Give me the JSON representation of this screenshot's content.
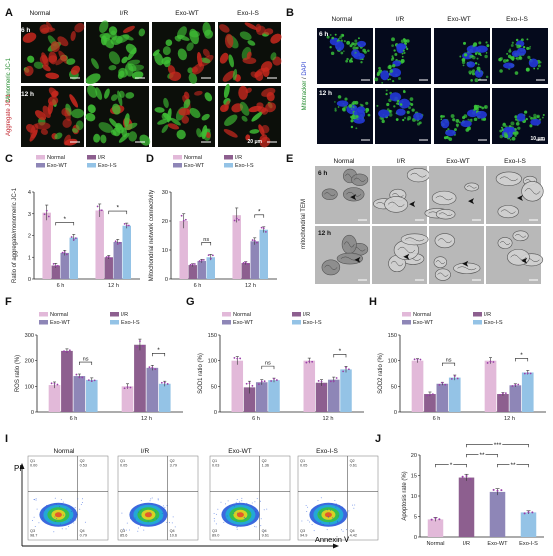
{
  "groups": [
    "Normal",
    "I/R",
    "Exo-WT",
    "Exo-I-S"
  ],
  "times": [
    "6 h",
    "12 h"
  ],
  "colors": {
    "Normal": "#e2b9d9",
    "I/R": "#8d5f8f",
    "Exo-WT": "#8e86b7",
    "Exo-I-S": "#94c3e6",
    "point": "#9a3fa8",
    "jc1_bg": "#0c0f0a",
    "mito_bg": "#050a1c",
    "tem_bg": "#b8b8b8",
    "flow_bg": "#ffffff"
  },
  "panel_letters": {
    "A": "A",
    "B": "B",
    "C": "C",
    "D": "D",
    "E": "E",
    "F": "F",
    "G": "G",
    "H": "H",
    "I": "I",
    "J": "J"
  },
  "panelA": {
    "side_label_1": "Monomeric JC-1",
    "side_label_2": "Aggregate JC-1",
    "time_6": "6 h",
    "time_12": "12 h",
    "scale": "20 μm"
  },
  "panelB": {
    "side_label_1": "Mitotracker",
    "side_label_2": "DAPI",
    "time_6": "6 h",
    "time_12": "12 h",
    "scale": "10 μm"
  },
  "panelE": {
    "side_label": "mitochondrial TEM",
    "time_6": "6 h",
    "time_12": "12 h"
  },
  "panelI": {
    "y_axis": "PI",
    "x_axis": "Annexin Ⅴ",
    "quadrants": [
      {
        "q1": "Q1",
        "q2": "Q2",
        "q3": "Q3",
        "q4": "Q4",
        "v1": "0.00",
        "v2": "0.53",
        "v3": "98.7",
        "v4": "0.79"
      },
      {
        "q1": "Q1",
        "q2": "Q2",
        "q3": "Q3",
        "q4": "Q4",
        "v1": "0.05",
        "v2": "3.79",
        "v3": "85.6",
        "v4": "10.6"
      },
      {
        "q1": "Q1",
        "q2": "Q2",
        "q3": "Q3",
        "q4": "Q4",
        "v1": "0.03",
        "v2": "1.36",
        "v3": "89.0",
        "v4": "9.61"
      },
      {
        "q1": "Q1",
        "q2": "Q2",
        "q3": "Q3",
        "q4": "Q4",
        "v1": "0.05",
        "v2": "0.61",
        "v3": "94.9",
        "v4": "4.42"
      }
    ]
  },
  "chart_data": [
    {
      "id": "C",
      "type": "bar",
      "ylabel": "Ratio of aggregate/monomeric JC-1",
      "categories": [
        "6 h",
        "12 h"
      ],
      "ylim": [
        0,
        4
      ],
      "yticks": [
        0,
        1,
        2,
        3,
        4
      ],
      "series": [
        {
          "name": "Normal",
          "values": [
            3.05,
            3.15
          ],
          "err": [
            0.35,
            0.3
          ]
        },
        {
          "name": "I/R",
          "values": [
            0.62,
            1.0
          ],
          "err": [
            0.1,
            0.08
          ]
        },
        {
          "name": "Exo-WT",
          "values": [
            1.2,
            1.7
          ],
          "err": [
            0.12,
            0.12
          ]
        },
        {
          "name": "Exo-I-S",
          "values": [
            1.9,
            2.45
          ],
          "err": [
            0.15,
            0.12
          ]
        }
      ],
      "sig": [
        {
          "time": 0,
          "from": 1,
          "to": 3,
          "label": "*"
        },
        {
          "time": 1,
          "from": 1,
          "to": 3,
          "label": "*"
        }
      ]
    },
    {
      "id": "D",
      "type": "bar",
      "ylabel": "Mitochondrial network connectivity",
      "categories": [
        "6 h",
        "12 h"
      ],
      "ylim": [
        0,
        30
      ],
      "yticks": [
        0,
        10,
        20,
        30
      ],
      "series": [
        {
          "name": "Normal",
          "values": [
            20,
            22
          ],
          "err": [
            2.5,
            2.5
          ]
        },
        {
          "name": "I/R",
          "values": [
            4.8,
            5.5
          ],
          "err": [
            0.5,
            0.5
          ]
        },
        {
          "name": "Exo-WT",
          "values": [
            6.2,
            13
          ],
          "err": [
            0.6,
            1.2
          ]
        },
        {
          "name": "Exo-I-S",
          "values": [
            7.5,
            17
          ],
          "err": [
            1.0,
            1.0
          ]
        }
      ],
      "sig": [
        {
          "time": 0,
          "from": 2,
          "to": 3,
          "label": "ns"
        },
        {
          "time": 1,
          "from": 2,
          "to": 3,
          "label": "*"
        }
      ]
    },
    {
      "id": "F",
      "type": "bar",
      "ylabel": "ROS ratio (%)",
      "categories": [
        "6 h",
        "12 h"
      ],
      "ylim": [
        0,
        300
      ],
      "yticks": [
        0,
        100,
        200,
        300
      ],
      "series": [
        {
          "name": "Normal",
          "values": [
            105,
            100
          ],
          "err": [
            12,
            10
          ]
        },
        {
          "name": "I/R",
          "values": [
            238,
            262
          ],
          "err": [
            8,
            22
          ]
        },
        {
          "name": "Exo-WT",
          "values": [
            140,
            172
          ],
          "err": [
            8,
            10
          ]
        },
        {
          "name": "Exo-I-S",
          "values": [
            125,
            110
          ],
          "err": [
            8,
            10
          ]
        }
      ],
      "sig": [
        {
          "time": 0,
          "from": 2,
          "to": 3,
          "label": "ns"
        },
        {
          "time": 1,
          "from": 2,
          "to": 3,
          "label": "*"
        }
      ]
    },
    {
      "id": "G",
      "type": "bar",
      "ylabel": "SOD1 ratio (%)",
      "categories": [
        "6 h",
        "12 h"
      ],
      "ylim": [
        0,
        150
      ],
      "yticks": [
        0,
        50,
        100,
        150
      ],
      "series": [
        {
          "name": "Normal",
          "values": [
            100,
            100
          ],
          "err": [
            8,
            5
          ]
        },
        {
          "name": "I/R",
          "values": [
            48,
            57
          ],
          "err": [
            12,
            6
          ]
        },
        {
          "name": "Exo-WT",
          "values": [
            58,
            63
          ],
          "err": [
            5,
            5
          ]
        },
        {
          "name": "Exo-I-S",
          "values": [
            62,
            83
          ],
          "err": [
            4,
            6
          ]
        }
      ],
      "sig": [
        {
          "time": 0,
          "from": 2,
          "to": 3,
          "label": "ns"
        },
        {
          "time": 1,
          "from": 2,
          "to": 3,
          "label": "*"
        }
      ]
    },
    {
      "id": "H",
      "type": "bar",
      "ylabel": "SOD2 ratio (%)",
      "categories": [
        "6 h",
        "12 h"
      ],
      "ylim": [
        0,
        150
      ],
      "yticks": [
        0,
        50,
        100,
        150
      ],
      "series": [
        {
          "name": "Normal",
          "values": [
            100,
            100
          ],
          "err": [
            4,
            6
          ]
        },
        {
          "name": "I/R",
          "values": [
            35,
            35
          ],
          "err": [
            4,
            3
          ]
        },
        {
          "name": "Exo-WT",
          "values": [
            55,
            52
          ],
          "err": [
            3,
            3
          ]
        },
        {
          "name": "Exo-I-S",
          "values": [
            67,
            77
          ],
          "err": [
            5,
            4
          ]
        }
      ],
      "sig": [
        {
          "time": 0,
          "from": 2,
          "to": 3,
          "label": "ns"
        },
        {
          "time": 1,
          "from": 2,
          "to": 3,
          "label": "*"
        }
      ]
    },
    {
      "id": "J",
      "type": "bar",
      "ylabel": "Apoptosis rate (%)",
      "categories": [
        "Normal",
        "I/R",
        "Exo-WT",
        "Exo-I-S"
      ],
      "ylim": [
        0,
        20
      ],
      "yticks": [
        0,
        5,
        10,
        15,
        20
      ],
      "values": [
        4.3,
        14.5,
        11.0,
        6.0
      ],
      "err": [
        0.5,
        0.8,
        0.8,
        0.4
      ],
      "sig": [
        {
          "from": 0,
          "to": 1,
          "label": "*",
          "level": 0
        },
        {
          "from": 1,
          "to": 3,
          "label": "***",
          "level": 2
        },
        {
          "from": 1,
          "to": 2,
          "label": "**",
          "level": 1
        },
        {
          "from": 2,
          "to": 3,
          "label": "**",
          "level": 0
        }
      ]
    }
  ]
}
